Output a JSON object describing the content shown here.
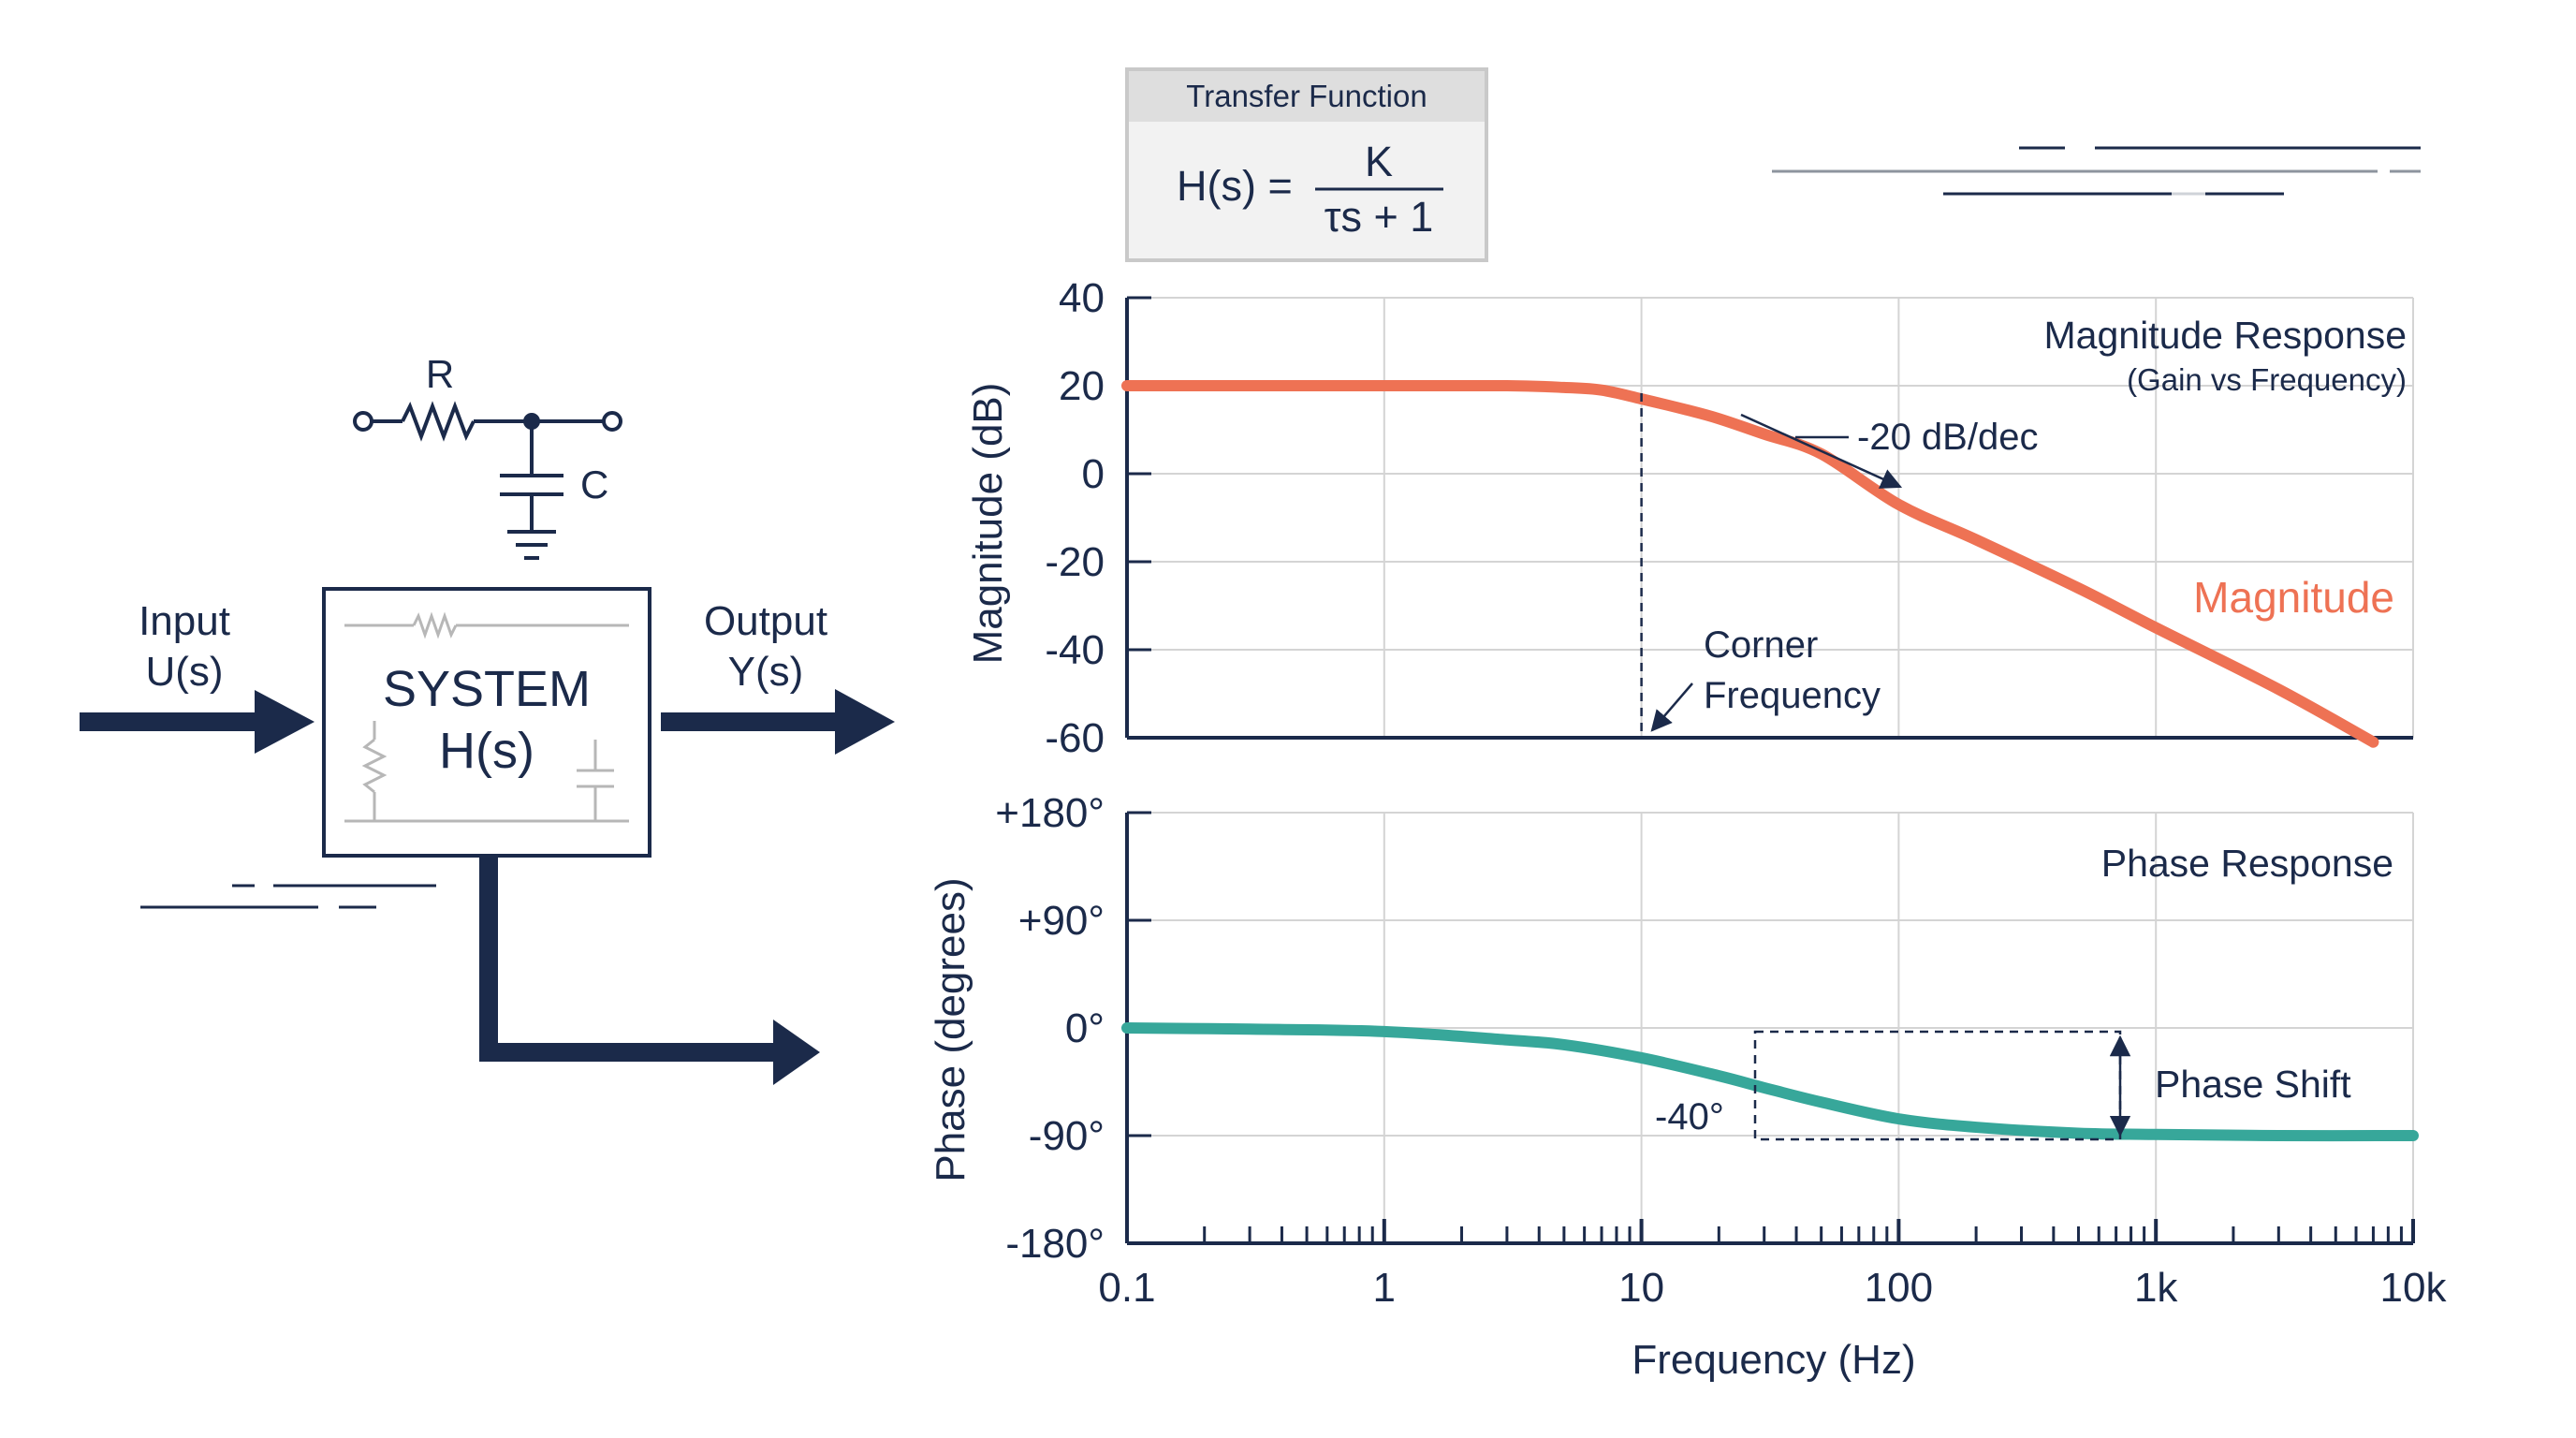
{
  "colors": {
    "navy": "#1b2a4a",
    "magnitude": "#ee7254",
    "phase": "#37a79a",
    "grid": "#d4d4d4",
    "panel_header": "#dedede",
    "panel_body": "#f2f2f2",
    "panel_border": "#c9c9c9"
  },
  "block": {
    "input_label": "Input",
    "input_signal": "U(s)",
    "output_label": "Output",
    "output_signal": "Y(s)",
    "system_label": "SYSTEM",
    "system_tf": "H(s)",
    "resistor_label": "R",
    "capacitor_label": "C"
  },
  "transfer_function": {
    "title": "Transfer Function",
    "lhs": "H(s) =",
    "numerator": "K",
    "denominator": "τs + 1"
  },
  "chart_data": [
    {
      "type": "line",
      "title": "Magnitude Response",
      "subtitle": "(Gain vs Frequency)",
      "xlabel": "",
      "ylabel": "Magnitude (dB)",
      "xscale": "log",
      "xlim": [
        0.1,
        10000
      ],
      "ylim": [
        -60,
        40
      ],
      "yticks": [
        "40",
        "20",
        "0",
        "-20",
        "-40",
        "-60"
      ],
      "ytick_values": [
        40,
        20,
        0,
        -20,
        -40,
        -60
      ],
      "grid": true,
      "series": [
        {
          "name": "Magnitude",
          "x": [
            0.1,
            0.3,
            1,
            3,
            5,
            7,
            10,
            15,
            20,
            30,
            50,
            100,
            200,
            500,
            1000,
            3000,
            7000
          ],
          "y": [
            20,
            20,
            20,
            20,
            19.6,
            19,
            17,
            14.5,
            12.5,
            9,
            4.5,
            -7,
            -15,
            -26,
            -35,
            -49,
            -61
          ]
        }
      ],
      "annotations": [
        {
          "text": "-20 dB/dec",
          "x": 80,
          "y": 2
        },
        {
          "text": "Corner",
          "text2": "Frequency",
          "x": 10,
          "y": -60
        }
      ]
    },
    {
      "type": "line",
      "title": "Phase Response",
      "xlabel": "Frequency (Hz)",
      "ylabel": "Phase (degrees)",
      "xscale": "log",
      "xlim": [
        0.1,
        10000
      ],
      "ylim": [
        -180,
        180
      ],
      "xticks": [
        "0.1",
        "1",
        "10",
        "100",
        "1k",
        "10k"
      ],
      "xtick_values": [
        0.1,
        1,
        10,
        100,
        1000,
        10000
      ],
      "yticks": [
        "+180°",
        "+90°",
        "0°",
        "-90°",
        "-180°"
      ],
      "ytick_values": [
        180,
        90,
        0,
        -90,
        -180
      ],
      "grid": true,
      "series": [
        {
          "name": "",
          "x": [
            0.1,
            0.3,
            1,
            3,
            5,
            10,
            20,
            30,
            50,
            100,
            200,
            500,
            1000,
            3000,
            10000
          ],
          "y": [
            0,
            -1,
            -3,
            -10,
            -14,
            -25,
            -40,
            -50,
            -62,
            -76,
            -83,
            -88,
            -89,
            -90,
            -90
          ]
        }
      ],
      "annotations": [
        {
          "text": "-40°",
          "x": 30,
          "y": -70
        },
        {
          "text": "Phase Shift",
          "x": 1000,
          "y": -45
        }
      ]
    }
  ]
}
